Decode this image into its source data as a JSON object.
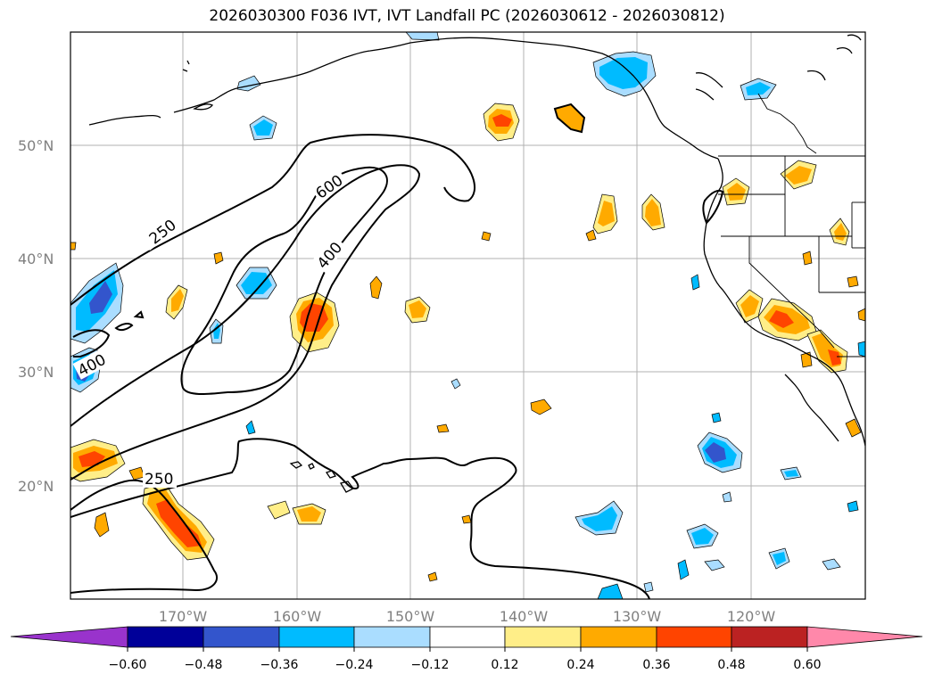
{
  "title": "2026030300 F036 IVT, IVT Landfall PC (2026030612 - 2026030812)",
  "map": {
    "lat_labels": [
      "50°N",
      "40°N",
      "30°N",
      "20°N"
    ],
    "lon_labels": [
      "170°W",
      "160°W",
      "150°W",
      "140°W",
      "130°W",
      "120°W"
    ],
    "contour_labels": [
      "250",
      "600",
      "400",
      "400",
      "250"
    ]
  },
  "colorbar": {
    "ticks": [
      "−0.60",
      "−0.48",
      "−0.36",
      "−0.24",
      "−0.12",
      "0.12",
      "0.24",
      "0.36",
      "0.48",
      "0.60"
    ],
    "colors": {
      "under": "#9933cc",
      "b1": "#000099",
      "b2": "#3355cc",
      "b3": "#00bbff",
      "b4": "#aaddff",
      "b5": "#ffffff",
      "b6": "#ffee88",
      "b7": "#ffaa00",
      "b8": "#ff4400",
      "b9": "#bb2222",
      "over": "#ff88aa"
    }
  }
}
